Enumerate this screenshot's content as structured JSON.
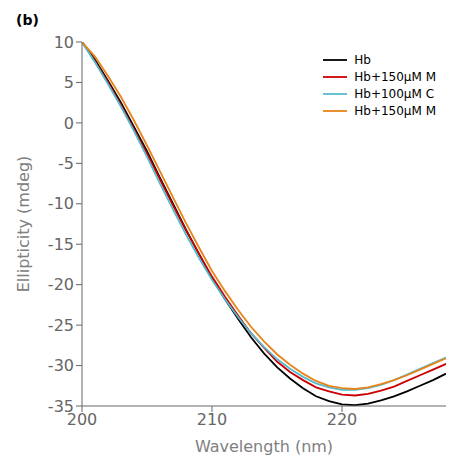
{
  "chart_data": {
    "type": "line",
    "title": "(b)",
    "x_label": "Wavelength (nm)",
    "y_label": "Ellipticity (mdeg)",
    "x": [
      200,
      201,
      202,
      203,
      204,
      205,
      206,
      207,
      208,
      209,
      210,
      211,
      212,
      213,
      214,
      215,
      216,
      217,
      218,
      219,
      220,
      221,
      222,
      223,
      224,
      225,
      226,
      227,
      228
    ],
    "series": [
      {
        "name": "Hb",
        "color": "#000000",
        "line_style": "solid",
        "values": [
          10.0,
          7.8,
          5.2,
          2.5,
          -0.5,
          -3.5,
          -6.8,
          -10.0,
          -13.2,
          -16.2,
          -19.2,
          -21.8,
          -24.2,
          -26.5,
          -28.5,
          -30.2,
          -31.6,
          -32.8,
          -33.8,
          -34.4,
          -34.8,
          -34.9,
          -34.7,
          -34.3,
          -33.8,
          -33.2,
          -32.5,
          -31.8,
          -31.0
        ]
      },
      {
        "name": "Hb+150μM M",
        "color": "#cc0000",
        "line_style": "solid",
        "values": [
          10.0,
          7.6,
          5.0,
          2.2,
          -0.8,
          -3.8,
          -7.0,
          -10.2,
          -13.3,
          -16.2,
          -19.0,
          -21.5,
          -23.8,
          -26.0,
          -27.8,
          -29.5,
          -30.8,
          -31.8,
          -32.7,
          -33.2,
          -33.6,
          -33.7,
          -33.5,
          -33.1,
          -32.6,
          -31.9,
          -31.2,
          -30.5,
          -29.8
        ]
      },
      {
        "name": "Hb+100μM C",
        "color": "#55bbcc",
        "line_style": "solid",
        "values": [
          10.0,
          7.5,
          4.8,
          2.0,
          -1.0,
          -4.2,
          -7.5,
          -10.7,
          -13.8,
          -16.7,
          -19.4,
          -21.8,
          -24.0,
          -26.0,
          -27.7,
          -29.2,
          -30.4,
          -31.4,
          -32.2,
          -32.7,
          -33.0,
          -33.0,
          -32.8,
          -32.4,
          -31.8,
          -31.1,
          -30.4,
          -29.7,
          -29.0
        ]
      },
      {
        "name": "Hb+150μM M",
        "color": "#e8841a",
        "line_style": "solid",
        "values": [
          10.0,
          8.2,
          5.8,
          3.2,
          0.3,
          -2.8,
          -6.0,
          -9.2,
          -12.4,
          -15.4,
          -18.3,
          -20.8,
          -23.1,
          -25.2,
          -27.0,
          -28.6,
          -29.9,
          -31.0,
          -31.9,
          -32.5,
          -32.8,
          -32.9,
          -32.7,
          -32.3,
          -31.8,
          -31.2,
          -30.5,
          -29.8,
          -29.1
        ]
      }
    ],
    "xlim": [
      200,
      228
    ],
    "xticks": [
      200,
      210,
      220
    ],
    "ylim": [
      -35,
      10
    ],
    "yticks": [
      10,
      5,
      0,
      -5,
      -10,
      -15,
      -20,
      -25,
      -30,
      -35
    ],
    "grid": false,
    "legend": "upper right"
  }
}
